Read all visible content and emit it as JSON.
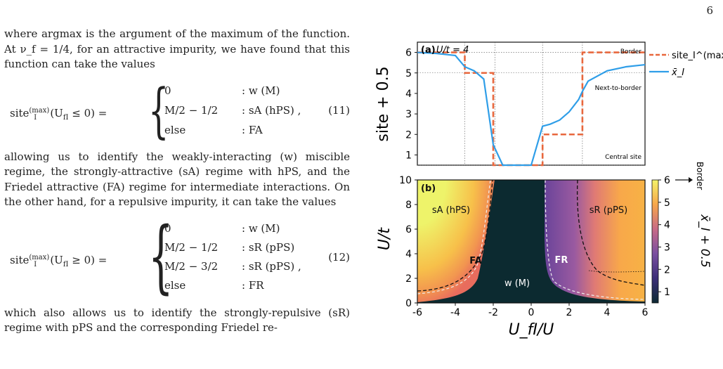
{
  "page_number": "6",
  "text": {
    "p1": "where argmax is the argument of the maximum of the function.  At ν_f = 1/4, for an attractive impurity, we have found that this function can take the values",
    "eq11_lhs": "site_I^(max)(U_fI ≤ 0) =",
    "eq11_cases": [
      {
        "value": "0",
        "label": ": w (M)"
      },
      {
        "value": "M/2 − 1/2",
        "label": ": sA (hPS) ,"
      },
      {
        "value": "else",
        "label": ": FA"
      }
    ],
    "eq11_number": "(11)",
    "p2": "allowing us to identify the weakly-interacting (w) miscible regime, the strongly-attractive (sA) regime with hPS, and the Friedel attractive (FA) regime for intermediate interactions. On the other hand, for a repulsive impurity, it can take the values",
    "eq12_lhs": "site_I^(max)(U_fI ≥ 0) =",
    "eq12_cases": [
      {
        "value": "0",
        "label": ": w (M)"
      },
      {
        "value": "M/2 − 1/2",
        "label": ": sR (pPS)"
      },
      {
        "value": "M/2 − 3/2",
        "label": ": sR (pPS) ,"
      },
      {
        "value": "else",
        "label": ": FR"
      }
    ],
    "eq12_number": "(12)",
    "p3": "which also allows us to identify the strongly-repulsive (sR) regime with pPS and the corresponding Friedel re-"
  },
  "figure": {
    "panel_a": {
      "label": "(a)",
      "param": "U/t = 4",
      "ylabel": "site + 0.5",
      "yticks": [
        "1",
        "2",
        "3",
        "4",
        "5",
        "6"
      ],
      "annotations": [
        "Border",
        "Next-to-border",
        "Central site"
      ],
      "legend": [
        "site_I^(max)",
        "x̄_I"
      ]
    },
    "panel_b": {
      "label": "(b)",
      "ylabel": "U/t",
      "xlabel": "U_fI/U",
      "yticks": [
        "0",
        "2",
        "4",
        "6",
        "8",
        "10"
      ],
      "xticks": [
        "-6",
        "-4",
        "-2",
        "0",
        "2",
        "4",
        "6"
      ],
      "regions": [
        "sA (hPS)",
        "sR (pPS)",
        "FA",
        "FR",
        "w (M)"
      ],
      "colorbar_label": "x̄_I + 0.5",
      "colorbar_ticks": [
        "1",
        "2",
        "3",
        "4",
        "5",
        "6"
      ],
      "colorbar_border": "Border"
    }
  },
  "chart_data": {
    "type": "line",
    "x": [
      -6,
      -5,
      -4,
      -3.5,
      -3,
      -2.5,
      -2,
      -1.5,
      -1,
      0,
      0.6,
      1,
      1.5,
      2,
      2.5,
      2.7,
      3,
      4,
      5,
      6
    ],
    "series": [
      {
        "name": "site_I^(max)",
        "values": [
          6,
          6,
          6,
          5,
          5,
          5,
          0.5,
          0.5,
          0.5,
          0.5,
          2,
          2,
          2,
          2,
          2,
          6,
          6,
          6,
          6,
          6
        ]
      },
      {
        "name": "x̄_I",
        "values": [
          6,
          5.95,
          5.85,
          5.3,
          5.1,
          4.7,
          1.5,
          0.5,
          0.5,
          0.5,
          2.4,
          2.5,
          2.7,
          3.1,
          3.7,
          4.1,
          4.6,
          5.1,
          5.3,
          5.4
        ]
      }
    ],
    "xlabel": "U_fI/U",
    "ylabel": "site + 0.5",
    "xlim": [
      -6,
      6
    ],
    "ylim": [
      0.5,
      6.5
    ],
    "colors": {
      "site_max": "#e8673d",
      "xbar": "#2f9ee8"
    }
  }
}
